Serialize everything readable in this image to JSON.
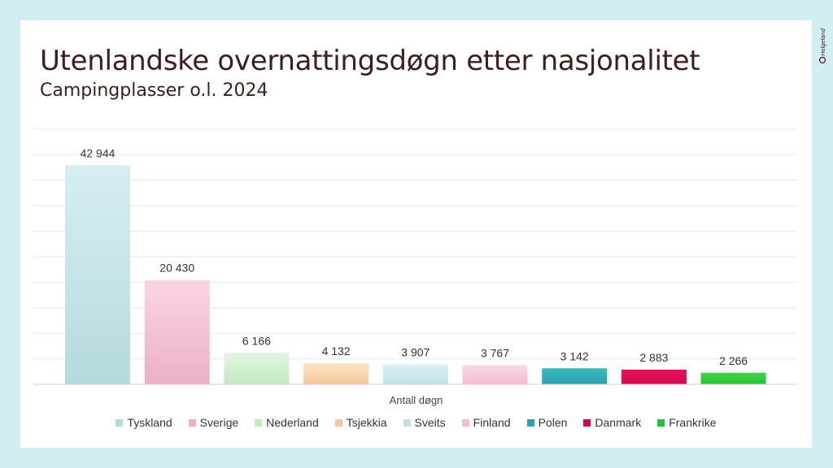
{
  "title": "Utenlandske overnattingsdøgn etter nasjonalitet",
  "subtitle": "Campingplasser o.l. 2024",
  "brand": "Helgeland",
  "chart_data": {
    "type": "bar",
    "title": "Utenlandske overnattingsdøgn etter nasjonalitet",
    "subtitle": "Campingplasser o.l. 2024",
    "xlabel": "Antall døgn",
    "ylabel": "",
    "ylim": [
      0,
      50000
    ],
    "grid": true,
    "legend": "bottom",
    "series": [
      {
        "name": "Tyskland",
        "value": 42944,
        "label": "42 944",
        "color": "#d6eef1",
        "color2": "#b5dadd"
      },
      {
        "name": "Sverige",
        "value": 20430,
        "label": "20 430",
        "color": "#fbd3e4",
        "color2": "#ebb0c8"
      },
      {
        "name": "Nederland",
        "value": 6166,
        "label": "6 166",
        "color": "#e2f5e2",
        "color2": "#c2e8c2"
      },
      {
        "name": "Tsjekkia",
        "value": 4132,
        "label": "4 132",
        "color": "#fde3c6",
        "color2": "#f6c79a"
      },
      {
        "name": "Sveits",
        "value": 3907,
        "label": "3 907",
        "color": "#dcf1f3",
        "color2": "#c2e2e6"
      },
      {
        "name": "Finland",
        "value": 3767,
        "label": "3 767",
        "color": "#fbd7e7",
        "color2": "#f4bcd5"
      },
      {
        "name": "Polen",
        "value": 3142,
        "label": "3 142",
        "color": "#3ab8bf",
        "color2": "#2aa2a9"
      },
      {
        "name": "Danmark",
        "value": 2883,
        "label": "2 883",
        "color": "#e8125c",
        "color2": "#cf0b4d"
      },
      {
        "name": "Frankrike",
        "value": 2266,
        "label": "2 266",
        "color": "#3ad64a",
        "color2": "#28c238"
      }
    ]
  }
}
